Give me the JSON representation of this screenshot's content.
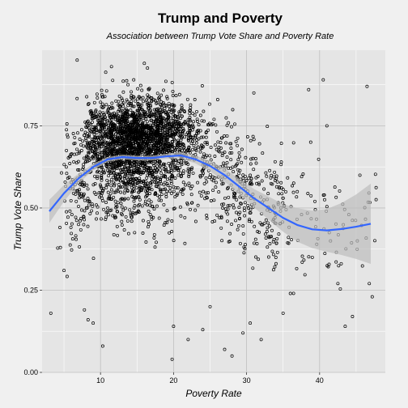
{
  "chart_data": {
    "type": "scatter",
    "title": "Trump and Poverty",
    "subtitle": "Association between Trump Vote Share and Poverty Rate",
    "xlabel": "Poverty Rate",
    "ylabel": "Trump Vote Share",
    "xlim": [
      2,
      49
    ],
    "ylim": [
      0,
      0.98
    ],
    "x_ticks": [
      10,
      20,
      30,
      40
    ],
    "x_tick_labels": [
      "10",
      "20",
      "30",
      "40"
    ],
    "y_ticks": [
      0,
      0.25,
      0.5,
      0.75
    ],
    "y_tick_labels": [
      "0.00",
      "0.25",
      "0.50",
      "0.75"
    ],
    "grid": true,
    "legend": "none",
    "point_style": "open-circle",
    "point_color": "#000000",
    "smooth_color": "#3366ff",
    "band_color": "#bdbdbd",
    "point_count_approx": 3100,
    "points_sample": [
      [
        3.2,
        0.18
      ],
      [
        4.5,
        0.38
      ],
      [
        5.0,
        0.31
      ],
      [
        6.8,
        0.95
      ],
      [
        7.0,
        0.45
      ],
      [
        7.8,
        0.19
      ],
      [
        8.3,
        0.16
      ],
      [
        9.0,
        0.15
      ],
      [
        10.3,
        0.08
      ],
      [
        11.5,
        0.93
      ],
      [
        16.0,
        0.94
      ],
      [
        19.8,
        0.04
      ],
      [
        20.0,
        0.14
      ],
      [
        24.0,
        0.13
      ],
      [
        27.0,
        0.07
      ],
      [
        29.5,
        0.12
      ],
      [
        31.0,
        0.85
      ],
      [
        32.0,
        0.1
      ],
      [
        36.0,
        0.24
      ],
      [
        38.5,
        0.86
      ],
      [
        40.5,
        0.89
      ],
      [
        41.0,
        0.75
      ],
      [
        42.5,
        0.27
      ],
      [
        43.5,
        0.14
      ],
      [
        44.5,
        0.17
      ],
      [
        46.5,
        0.87
      ],
      [
        46.8,
        0.27
      ],
      [
        47.2,
        0.23
      ],
      [
        44.0,
        0.48
      ],
      [
        41.5,
        0.4
      ],
      [
        39.0,
        0.35
      ],
      [
        35.0,
        0.18
      ],
      [
        30.5,
        0.15
      ],
      [
        28.0,
        0.05
      ],
      [
        25.0,
        0.2
      ],
      [
        22.0,
        0.1
      ]
    ],
    "smooth_line": {
      "x": [
        3,
        5,
        7,
        9,
        11,
        13,
        15,
        17,
        19,
        21,
        23,
        25,
        27,
        29,
        31,
        33,
        35,
        37,
        39,
        41,
        43,
        45,
        47
      ],
      "y": [
        0.49,
        0.545,
        0.59,
        0.625,
        0.648,
        0.655,
        0.652,
        0.652,
        0.657,
        0.66,
        0.648,
        0.628,
        0.6,
        0.565,
        0.53,
        0.5,
        0.47,
        0.448,
        0.435,
        0.432,
        0.436,
        0.443,
        0.452
      ],
      "lower": [
        0.455,
        0.52,
        0.575,
        0.615,
        0.641,
        0.648,
        0.645,
        0.645,
        0.649,
        0.65,
        0.636,
        0.612,
        0.58,
        0.541,
        0.502,
        0.465,
        0.428,
        0.397,
        0.378,
        0.367,
        0.357,
        0.345,
        0.33
      ],
      "upper": [
        0.525,
        0.57,
        0.605,
        0.635,
        0.655,
        0.662,
        0.659,
        0.659,
        0.665,
        0.67,
        0.66,
        0.644,
        0.62,
        0.589,
        0.558,
        0.535,
        0.512,
        0.499,
        0.492,
        0.497,
        0.515,
        0.541,
        0.574
      ]
    }
  }
}
